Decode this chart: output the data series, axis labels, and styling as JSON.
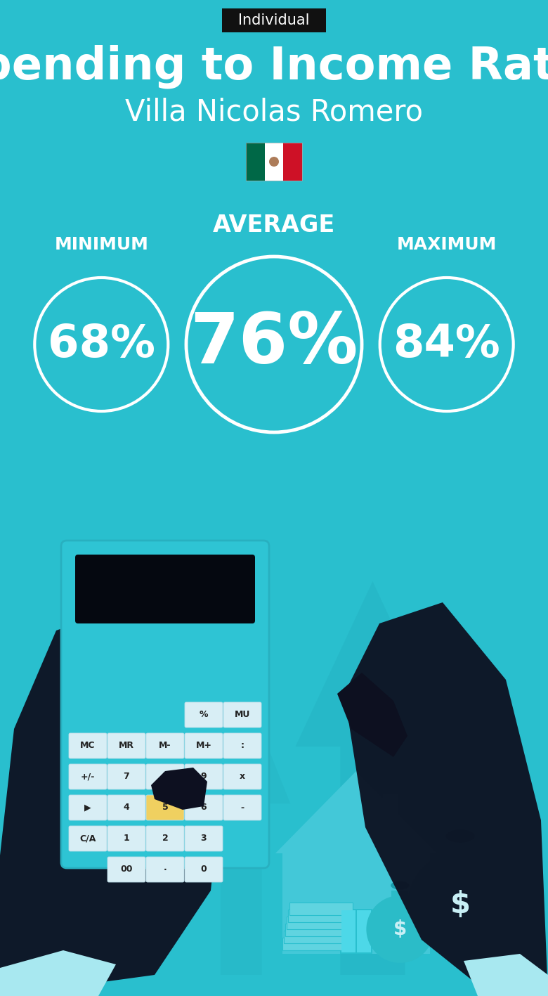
{
  "bg_color": "#29BFCE",
  "title_badge_text": "Individual",
  "title_badge_bg": "#111111",
  "title_badge_text_color": "#ffffff",
  "title": "Spending to Income Ratio",
  "subtitle": "Villa Nicolas Romero",
  "title_color": "#ffffff",
  "subtitle_color": "#ffffff",
  "label_min": "MINIMUM",
  "label_avg": "AVERAGE",
  "label_max": "MAXIMUM",
  "value_min": "68%",
  "value_avg": "76%",
  "value_max": "84%",
  "circle_color": "#ffffff",
  "circle_text_color": "#ffffff",
  "label_color": "#ffffff",
  "figsize": [
    7.8,
    14.17
  ],
  "dpi": 100,
  "arrow_color": "#25B4C4",
  "house_color": "#43C8D8",
  "money_bag_color": "#2BBCC8"
}
